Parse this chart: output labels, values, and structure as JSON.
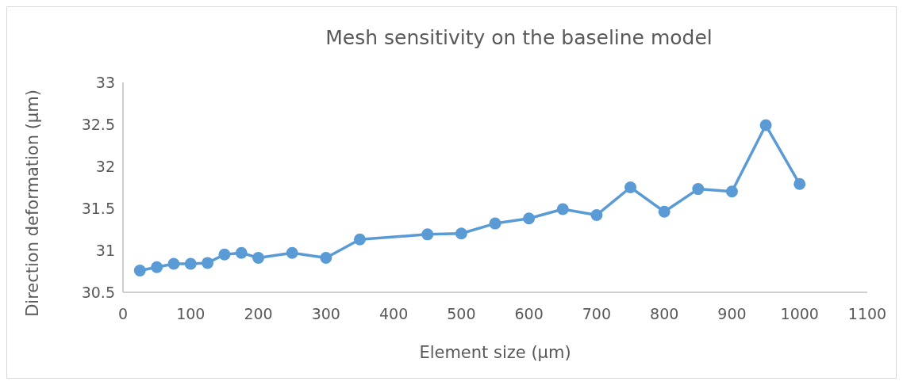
{
  "chart_data": {
    "type": "line",
    "title": "Mesh sensitivity on the baseline model",
    "xlabel": "Element size (µm)",
    "ylabel": "Direction deformation (µm)",
    "x": [
      25,
      50,
      75,
      100,
      125,
      150,
      175,
      200,
      250,
      300,
      350,
      450,
      500,
      550,
      600,
      650,
      700,
      750,
      800,
      850,
      900,
      950,
      1000
    ],
    "series": [
      {
        "color": "#5b9bd5",
        "values": [
          30.76,
          30.8,
          30.84,
          30.84,
          30.85,
          30.95,
          30.97,
          30.91,
          30.97,
          30.91,
          31.13,
          31.19,
          31.2,
          31.32,
          31.38,
          31.49,
          31.42,
          31.75,
          31.46,
          31.73,
          31.7,
          32.49,
          31.79
        ]
      }
    ],
    "xlim": [
      0,
      1100
    ],
    "xticks": [
      0,
      100,
      200,
      300,
      400,
      500,
      600,
      700,
      800,
      900,
      1000,
      1100
    ],
    "ylim": [
      30.5,
      33
    ],
    "yticks": [
      30.5,
      31,
      31.5,
      32,
      32.5,
      33
    ],
    "marker": "circle",
    "line_style": "solid"
  }
}
